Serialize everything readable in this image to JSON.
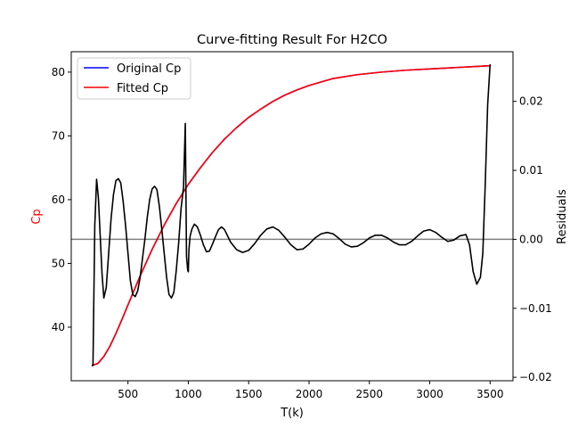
{
  "chart_data": {
    "type": "line",
    "title": "Curve-fitting Result For H2CO",
    "xlabel": "T(k)",
    "ylabel_left": "Cp",
    "ylabel_right": "Residuals",
    "xlim": [
      30,
      3690
    ],
    "ylim_left": [
      31.6,
      83.2
    ],
    "ylim_right": [
      -0.0205,
      0.0272
    ],
    "x_ticks": [
      500,
      1000,
      1500,
      2000,
      2500,
      3000,
      3500
    ],
    "x_tick_labels": [
      "500",
      "1000",
      "1500",
      "2000",
      "2500",
      "3000",
      "3500"
    ],
    "y_left_ticks": [
      40,
      50,
      60,
      70,
      80
    ],
    "y_left_tick_labels": [
      "40",
      "50",
      "60",
      "70",
      "80"
    ],
    "y_right_ticks": [
      -0.02,
      -0.01,
      0.0,
      0.01,
      0.02
    ],
    "y_right_tick_labels": [
      "−0.02",
      "−0.01",
      "0.00",
      "0.01",
      "0.02"
    ],
    "legend_position": "top-left",
    "colors": {
      "original": "#0000ff",
      "fitted": "#ff0000",
      "residuals": "#000000",
      "zero_line": "#808080",
      "ylabel_left": "#ff0000"
    },
    "series": [
      {
        "name": "Original Cp",
        "axis": "left",
        "color": "#0000ff",
        "x": [
          200,
          250,
          300,
          350,
          400,
          450,
          500,
          600,
          700,
          800,
          900,
          1000,
          1100,
          1200,
          1300,
          1400,
          1500,
          1600,
          1700,
          1800,
          1900,
          2000,
          2200,
          2400,
          2600,
          2800,
          3000,
          3200,
          3400,
          3500
        ],
        "y": [
          34.0,
          34.3,
          35.4,
          37.0,
          39.0,
          41.2,
          43.5,
          48.0,
          52.2,
          56.0,
          59.4,
          62.4,
          65.0,
          67.4,
          69.5,
          71.3,
          72.9,
          74.2,
          75.4,
          76.4,
          77.2,
          77.9,
          79.0,
          79.6,
          80.0,
          80.3,
          80.5,
          80.7,
          80.9,
          81.0
        ]
      },
      {
        "name": "Fitted Cp",
        "axis": "left",
        "color": "#ff0000",
        "x": [
          200,
          250,
          300,
          350,
          400,
          450,
          500,
          600,
          700,
          800,
          900,
          1000,
          1100,
          1200,
          1300,
          1400,
          1500,
          1600,
          1700,
          1800,
          1900,
          2000,
          2200,
          2400,
          2600,
          2800,
          3000,
          3200,
          3400,
          3500
        ],
        "y": [
          34.0,
          34.3,
          35.4,
          37.0,
          39.0,
          41.2,
          43.5,
          48.0,
          52.2,
          56.0,
          59.4,
          62.4,
          65.0,
          67.4,
          69.5,
          71.3,
          72.9,
          74.2,
          75.4,
          76.4,
          77.2,
          77.9,
          79.0,
          79.6,
          80.0,
          80.3,
          80.5,
          80.7,
          80.9,
          81.0
        ]
      },
      {
        "name": "Residuals",
        "axis": "right",
        "color": "#000000",
        "x": [
          200,
          210,
          225,
          240,
          255,
          270,
          285,
          300,
          320,
          340,
          360,
          380,
          400,
          420,
          440,
          460,
          480,
          500,
          520,
          540,
          560,
          580,
          600,
          620,
          640,
          660,
          680,
          700,
          720,
          740,
          760,
          780,
          800,
          820,
          840,
          860,
          880,
          900,
          920,
          940,
          960,
          975,
          985,
          995,
          1000,
          1005,
          1015,
          1030,
          1050,
          1075,
          1100,
          1125,
          1150,
          1175,
          1200,
          1225,
          1250,
          1275,
          1300,
          1350,
          1400,
          1450,
          1500,
          1550,
          1600,
          1650,
          1700,
          1750,
          1800,
          1850,
          1900,
          1950,
          2000,
          2050,
          2100,
          2150,
          2200,
          2250,
          2300,
          2350,
          2400,
          2450,
          2500,
          2550,
          2600,
          2650,
          2700,
          2750,
          2800,
          2850,
          2900,
          2950,
          3000,
          3050,
          3100,
          3150,
          3200,
          3250,
          3300,
          3330,
          3360,
          3390,
          3420,
          3440,
          3460,
          3480,
          3500,
          3505
        ],
        "y": [
          -0.0183,
          -0.0183,
          0.002,
          0.0087,
          0.006,
          0.0005,
          -0.005,
          -0.0085,
          -0.007,
          -0.002,
          0.003,
          0.0065,
          0.0085,
          0.0088,
          0.0082,
          0.0055,
          0.002,
          -0.002,
          -0.006,
          -0.008,
          -0.0083,
          -0.0075,
          -0.0056,
          -0.0028,
          0.0,
          0.0032,
          0.0058,
          0.0073,
          0.0077,
          0.0072,
          0.0048,
          0.0015,
          -0.002,
          -0.0055,
          -0.008,
          -0.0085,
          -0.0077,
          -0.0045,
          -0.0005,
          0.0045,
          0.0075,
          0.0168,
          -0.0025,
          -0.0045,
          -0.0047,
          -0.0015,
          0.0005,
          0.0015,
          0.0022,
          0.0018,
          0.0006,
          -0.0008,
          -0.0018,
          -0.0017,
          -0.0007,
          0.0004,
          0.0014,
          0.0018,
          0.0014,
          -0.0004,
          -0.0015,
          -0.0019,
          -0.0016,
          -0.0006,
          0.0006,
          0.0015,
          0.0018,
          0.0013,
          0.0003,
          -0.0008,
          -0.0015,
          -0.0014,
          -0.0007,
          0.0002,
          0.0008,
          0.001,
          0.0008,
          0.0001,
          -0.0007,
          -0.0011,
          -0.001,
          -0.0005,
          0.0002,
          0.0006,
          0.0006,
          0.0002,
          -0.0004,
          -0.0008,
          -0.0008,
          -0.0003,
          0.0005,
          0.0012,
          0.0014,
          0.001,
          0.0003,
          -0.0003,
          -0.0001,
          0.0005,
          0.0007,
          -0.0008,
          -0.0047,
          -0.0065,
          -0.0055,
          -0.002,
          0.008,
          0.0195,
          0.0253,
          0.0253
        ]
      }
    ]
  }
}
